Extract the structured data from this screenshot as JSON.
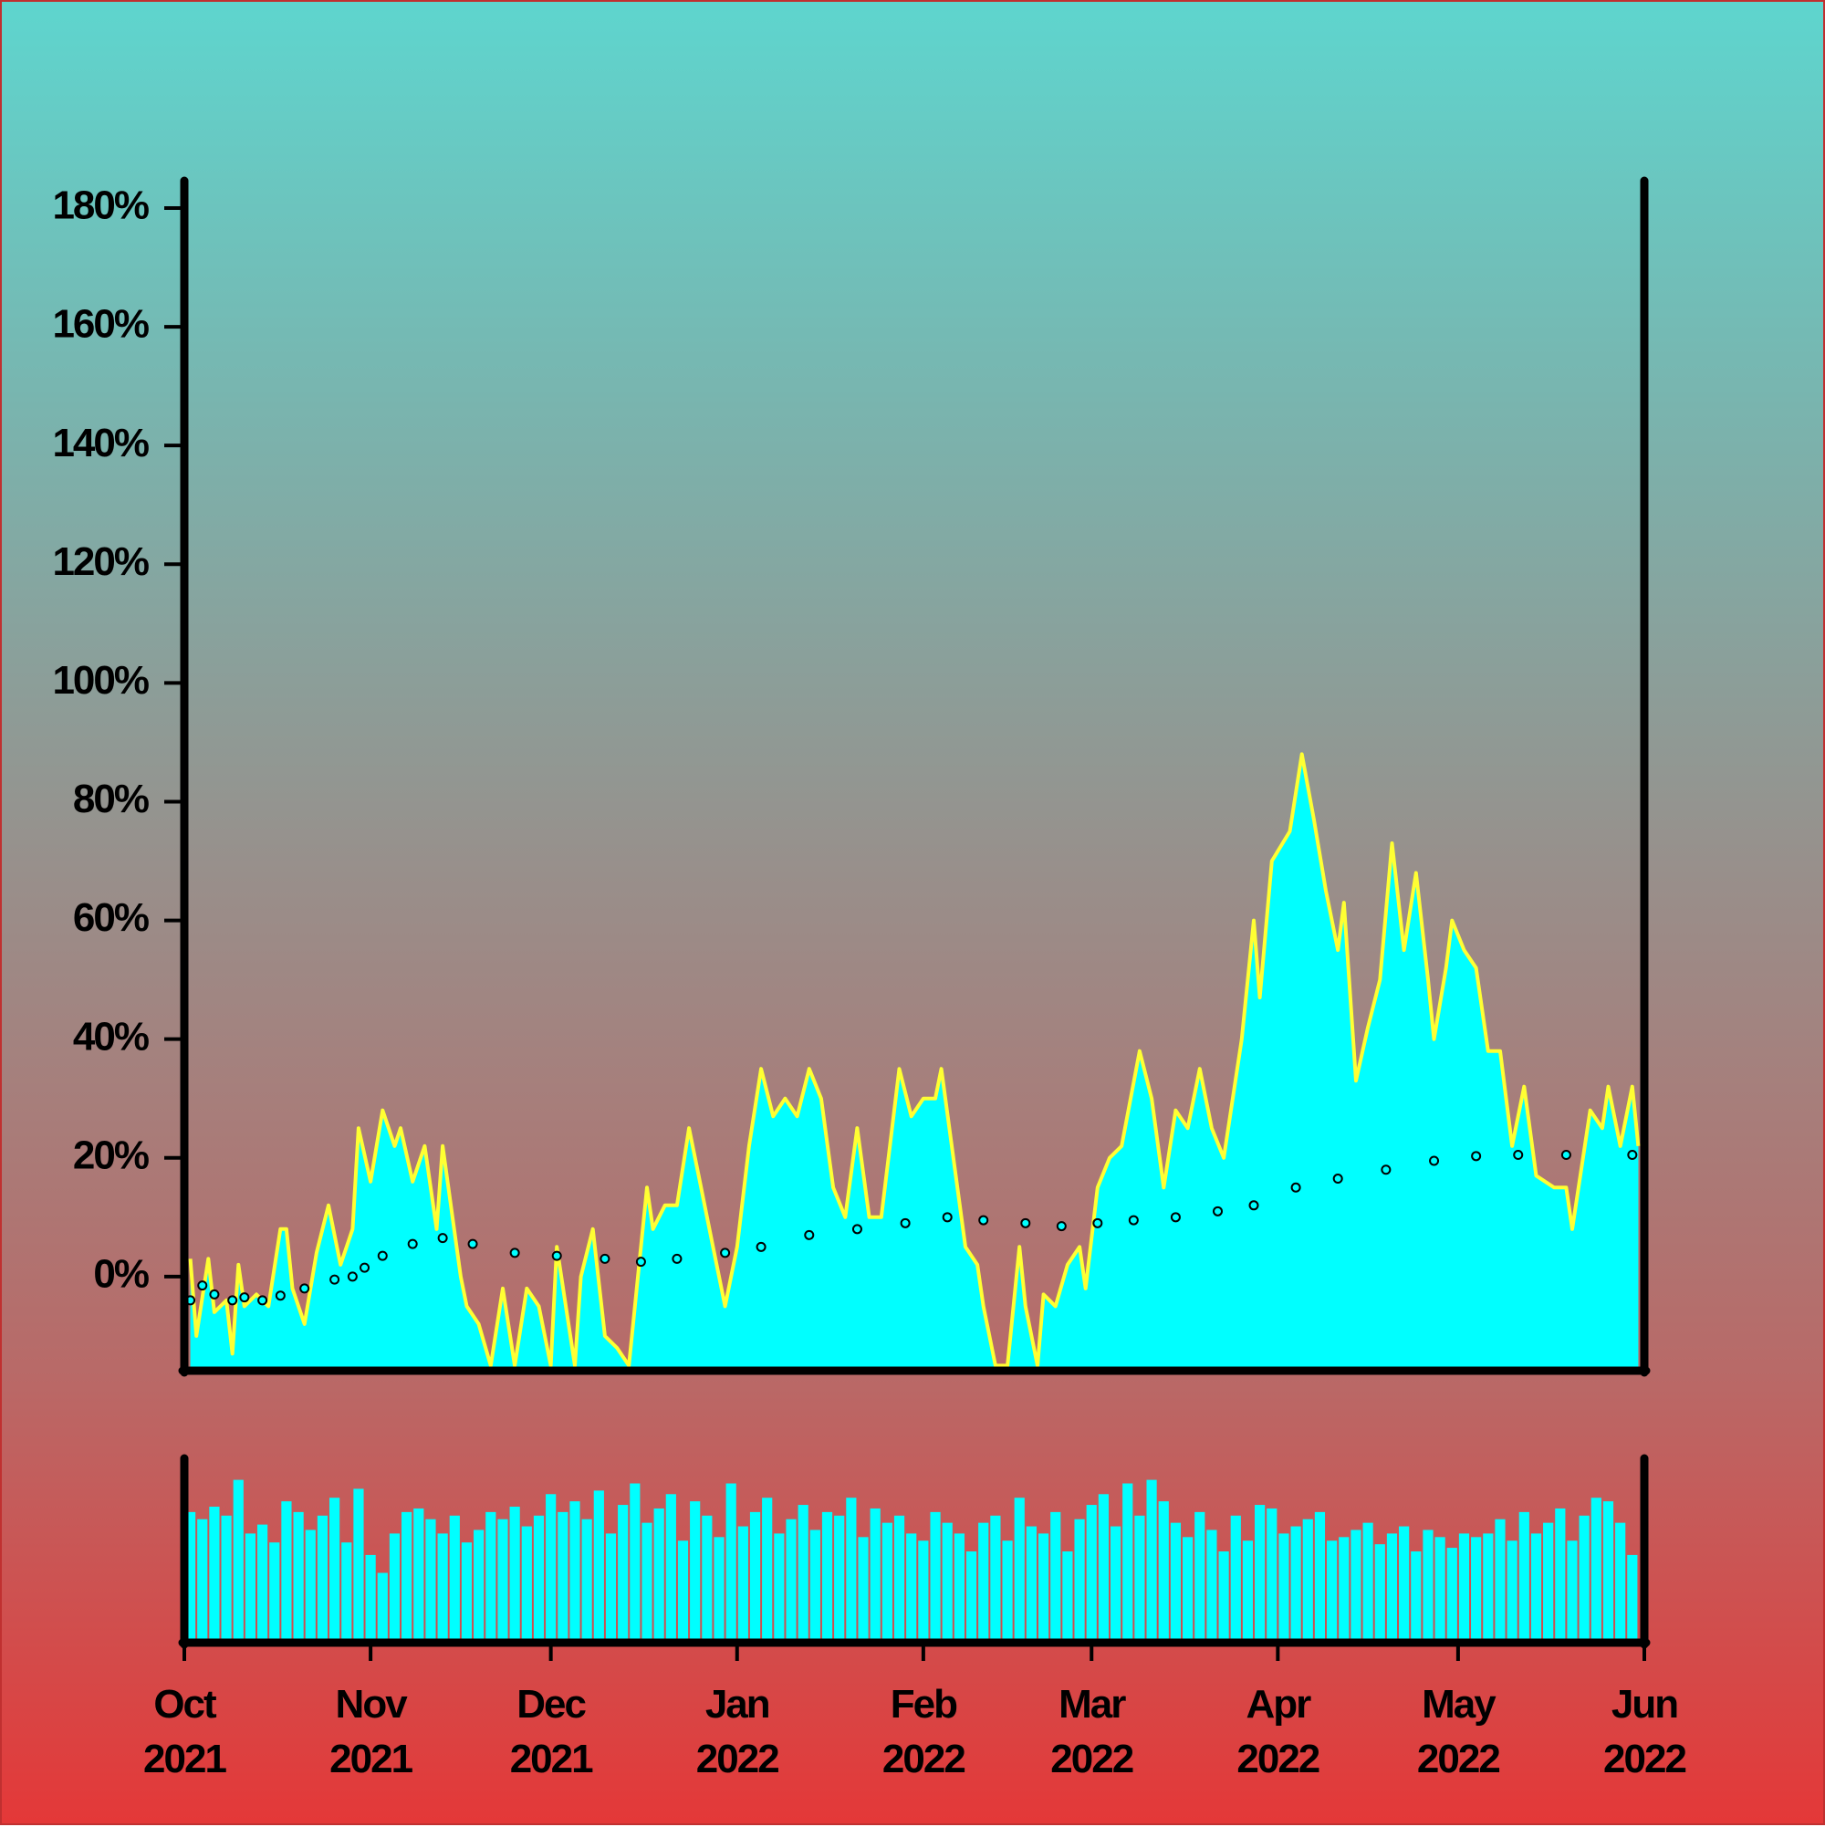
{
  "chart_data": [
    {
      "type": "area",
      "xlim": [
        0,
        243
      ],
      "xticks": [
        {
          "value": 0,
          "label": "Oct\n2021"
        },
        {
          "value": 31,
          "label": "Nov\n2021"
        },
        {
          "value": 61,
          "label": "Dec\n2021"
        },
        {
          "value": 92,
          "label": "Jan\n2022"
        },
        {
          "value": 123,
          "label": "Feb\n2022"
        },
        {
          "value": 151,
          "label": "Mar\n2022"
        },
        {
          "value": 182,
          "label": "Apr\n2022"
        },
        {
          "value": 212,
          "label": "May\n2022"
        },
        {
          "value": 243,
          "label": "Jun\n2022"
        }
      ],
      "ylim": [
        -15.7,
        184.3
      ],
      "yticks": [
        {
          "value": 0,
          "label": "0%"
        },
        {
          "value": 20,
          "label": "20%"
        },
        {
          "value": 40,
          "label": "40%"
        },
        {
          "value": 60,
          "label": "60%"
        },
        {
          "value": 80,
          "label": "80%"
        },
        {
          "value": 100,
          "label": "100%"
        },
        {
          "value": 120,
          "label": "120%"
        },
        {
          "value": 140,
          "label": "140%"
        },
        {
          "value": 160,
          "label": "160%"
        },
        {
          "value": 180,
          "label": "180%"
        }
      ],
      "series": [
        {
          "fill_color": "#00ffff",
          "line_color": "#ffff33",
          "x": [
            1,
            2,
            4,
            5,
            7,
            8,
            9,
            10,
            12,
            14,
            16,
            17,
            18,
            20,
            22,
            24,
            26,
            28,
            29,
            31,
            33,
            35,
            36,
            38,
            40,
            42,
            43,
            46,
            47,
            49,
            51,
            53,
            55,
            57,
            59,
            61,
            62,
            65,
            66,
            68,
            70,
            72,
            74,
            77,
            78,
            80,
            82,
            84,
            86,
            88,
            90,
            92,
            94,
            96,
            98,
            100,
            102,
            104,
            106,
            108,
            110,
            112,
            114,
            116,
            119,
            121,
            123,
            125,
            126,
            128,
            130,
            132,
            133,
            135,
            137,
            139,
            140,
            142,
            143,
            145,
            147,
            149,
            150,
            152,
            154,
            156,
            159,
            161,
            163,
            165,
            167,
            169,
            171,
            173,
            176,
            178,
            179,
            181,
            184,
            186,
            188,
            190,
            192,
            193,
            195,
            197,
            199,
            201,
            203,
            205,
            207,
            208,
            210,
            211,
            213,
            215,
            217,
            219,
            221,
            223,
            225,
            228,
            230,
            231,
            234,
            236,
            237,
            239,
            241,
            242
          ],
          "values": [
            3,
            -10,
            3,
            -6,
            -4,
            -13,
            2,
            -5,
            -3,
            -5,
            8,
            8,
            -2,
            -8,
            4,
            12,
            2,
            8,
            25,
            16,
            28,
            22,
            25,
            16,
            22,
            8,
            22,
            0,
            -5,
            -8,
            -15,
            -2,
            -15,
            -2,
            -5,
            -15,
            5,
            -15,
            0,
            8,
            -10,
            -12,
            -15,
            15,
            8,
            12,
            12,
            25,
            15,
            5,
            -5,
            5,
            22,
            35,
            27,
            30,
            27,
            35,
            30,
            15,
            10,
            25,
            10,
            10,
            35,
            27,
            30,
            30,
            35,
            20,
            5,
            2,
            -5,
            -15,
            -15,
            5,
            -5,
            -15,
            -3,
            -5,
            2,
            5,
            -2,
            15,
            20,
            22,
            38,
            30,
            15,
            28,
            25,
            35,
            25,
            20,
            40,
            60,
            47,
            70,
            75,
            88,
            77,
            65,
            55,
            63,
            33,
            42,
            50,
            73,
            55,
            68,
            50,
            40,
            52,
            60,
            55,
            52,
            38,
            38,
            22,
            32,
            17,
            15,
            15,
            8,
            28,
            25,
            32,
            22,
            32,
            22
          ]
        },
        {
          "marker": "circle",
          "color": "#00ffff",
          "edge_color": "#000000",
          "x": [
            1,
            3,
            5,
            8,
            10,
            13,
            16,
            20,
            25,
            28,
            30,
            33,
            38,
            43,
            48,
            55,
            62,
            70,
            76,
            82,
            90,
            96,
            104,
            112,
            120,
            127,
            133,
            140,
            146,
            152,
            158,
            165,
            172,
            178,
            185,
            192,
            200,
            208,
            215,
            222,
            230,
            241
          ],
          "values": [
            -4,
            -1.5,
            -3,
            -4,
            -3.5,
            -4,
            -3.2,
            -2,
            -0.5,
            0,
            1.5,
            3.5,
            5.5,
            6.5,
            5.5,
            4,
            3.5,
            3,
            2.5,
            3,
            4,
            5,
            7,
            8,
            9,
            10,
            9.5,
            9,
            8.5,
            9,
            9.5,
            10,
            11,
            12,
            15,
            16.5,
            18,
            19.5,
            20.3,
            20.5,
            20.5,
            20.5
          ]
        }
      ]
    },
    {
      "type": "bar",
      "color": "#00ffff",
      "xlim": [
        0,
        243
      ],
      "ylim": [
        0,
        100
      ],
      "x": [
        1,
        3,
        5,
        7,
        9,
        11,
        13,
        15,
        17,
        19,
        21,
        23,
        25,
        27,
        29,
        31,
        33,
        35,
        37,
        39,
        41,
        43,
        45,
        47,
        49,
        51,
        53,
        55,
        57,
        59,
        61,
        63,
        65,
        67,
        69,
        71,
        73,
        75,
        77,
        79,
        81,
        83,
        85,
        87,
        89,
        91,
        93,
        95,
        97,
        99,
        101,
        103,
        105,
        107,
        109,
        111,
        113,
        115,
        117,
        119,
        121,
        123,
        125,
        127,
        129,
        131,
        133,
        135,
        137,
        139,
        141,
        143,
        145,
        147,
        149,
        151,
        153,
        155,
        157,
        159,
        161,
        163,
        165,
        167,
        169,
        171,
        173,
        175,
        177,
        179,
        181,
        183,
        185,
        187,
        189,
        191,
        193,
        195,
        197,
        199,
        201,
        203,
        205,
        207,
        209,
        211,
        213,
        215,
        217,
        219,
        221,
        223,
        225,
        227,
        229,
        231,
        233,
        235,
        237,
        239,
        241
      ],
      "values": [
        72,
        68,
        75,
        70,
        90,
        60,
        65,
        55,
        78,
        72,
        62,
        70,
        80,
        55,
        85,
        48,
        38,
        60,
        72,
        74,
        68,
        60,
        70,
        55,
        62,
        72,
        68,
        75,
        64,
        70,
        82,
        72,
        78,
        68,
        84,
        60,
        76,
        88,
        66,
        74,
        82,
        56,
        78,
        70,
        58,
        88,
        64,
        72,
        80,
        60,
        68,
        76,
        62,
        72,
        70,
        80,
        58,
        74,
        66,
        70,
        60,
        56,
        72,
        66,
        60,
        50,
        66,
        70,
        56,
        80,
        64,
        60,
        72,
        50,
        68,
        76,
        82,
        64,
        88,
        70,
        90,
        78,
        66,
        58,
        72,
        62,
        50,
        70,
        56,
        76,
        74,
        60,
        64,
        68,
        72,
        56,
        58,
        62,
        66,
        54,
        60,
        64,
        50,
        62,
        58,
        52,
        60,
        58,
        60,
        68,
        56,
        72,
        60,
        66,
        74,
        56,
        70,
        80,
        78,
        66,
        48
      ]
    }
  ]
}
